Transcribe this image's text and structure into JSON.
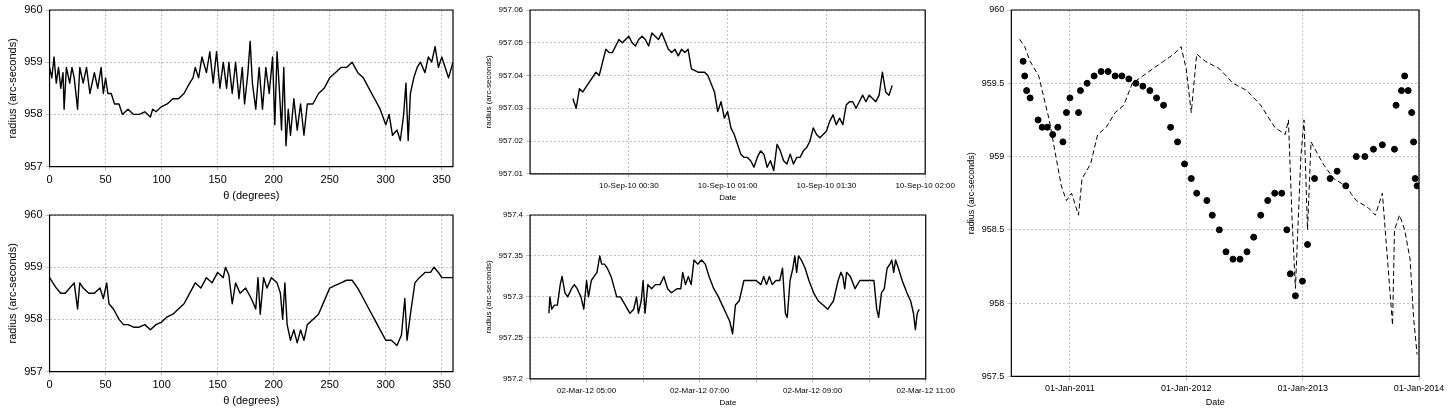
{
  "chart_data": [
    {
      "type": "line",
      "xlabel": "θ (degrees)",
      "ylabel": "radius (arc-seconds)",
      "xlim": [
        0,
        360
      ],
      "xticks": [
        0,
        50,
        100,
        150,
        200,
        250,
        300,
        350
      ],
      "ylim": [
        957,
        960
      ],
      "yticks": [
        957,
        958,
        959,
        960
      ],
      "grid": true,
      "line_style": "solid",
      "x": [
        0,
        2,
        4,
        6,
        8,
        10,
        12,
        13,
        15,
        18,
        20,
        22,
        25,
        27,
        30,
        33,
        36,
        40,
        43,
        46,
        48,
        50,
        52,
        55,
        58,
        62,
        65,
        70,
        75,
        80,
        85,
        90,
        92,
        95,
        100,
        105,
        110,
        115,
        120,
        125,
        128,
        130,
        133,
        136,
        140,
        143,
        146,
        149,
        152,
        155,
        158,
        160,
        163,
        166,
        169,
        172,
        174,
        177,
        179,
        181,
        184,
        187,
        190,
        193,
        196,
        199,
        201,
        203,
        205,
        207,
        209,
        211,
        213,
        215,
        218,
        221,
        224,
        227,
        230,
        235,
        240,
        245,
        250,
        255,
        260,
        265,
        270,
        275,
        280,
        285,
        290,
        295,
        300,
        303,
        306,
        310,
        313,
        316,
        318,
        320,
        322,
        325,
        328,
        331,
        335,
        338,
        341,
        344,
        347,
        350,
        353,
        356,
        360
      ],
      "series": [
        {
          "color": "#000000",
          "values": [
            958.9,
            958.7,
            959.1,
            958.6,
            958.9,
            958.5,
            958.8,
            958.1,
            958.9,
            958.6,
            958.9,
            958.7,
            958.1,
            958.9,
            958.6,
            958.9,
            958.4,
            958.8,
            958.5,
            958.9,
            958.4,
            958.7,
            958.4,
            958.4,
            958.2,
            958.2,
            958.0,
            958.1,
            958.0,
            958.0,
            958.05,
            957.95,
            958.1,
            958.05,
            958.15,
            958.2,
            958.3,
            958.3,
            958.4,
            958.6,
            958.7,
            958.9,
            958.7,
            959.1,
            958.8,
            959.2,
            958.6,
            959.2,
            958.5,
            959.0,
            958.5,
            959.0,
            958.4,
            959.0,
            958.3,
            958.9,
            958.2,
            958.8,
            959.4,
            958.6,
            958.1,
            958.9,
            958.1,
            958.9,
            958.4,
            959.1,
            957.8,
            959.2,
            958.5,
            957.7,
            958.9,
            957.4,
            958.1,
            957.6,
            958.3,
            957.7,
            958.2,
            957.6,
            958.2,
            958.2,
            958.4,
            958.5,
            958.7,
            958.8,
            958.9,
            958.9,
            959.0,
            958.8,
            958.7,
            958.5,
            958.3,
            958.1,
            957.8,
            958.0,
            957.6,
            957.7,
            957.5,
            958.0,
            958.6,
            957.5,
            958.4,
            958.7,
            958.9,
            959.0,
            958.8,
            959.1,
            959.0,
            959.3,
            958.9,
            959.1,
            958.9,
            958.7,
            959.0
          ]
        }
      ]
    },
    {
      "type": "line",
      "xlabel": "θ (degrees)",
      "ylabel": "radius (arc-seconds)",
      "xlim": [
        0,
        360
      ],
      "xticks": [
        0,
        50,
        100,
        150,
        200,
        250,
        300,
        350
      ],
      "ylim": [
        957,
        960
      ],
      "yticks": [
        957,
        958,
        959,
        960
      ],
      "grid": true,
      "line_style": "solid",
      "x": [
        0,
        3,
        6,
        10,
        14,
        18,
        22,
        25,
        27,
        30,
        35,
        40,
        45,
        48,
        51,
        53,
        57,
        62,
        66,
        70,
        75,
        80,
        85,
        90,
        95,
        100,
        105,
        110,
        115,
        120,
        125,
        130,
        135,
        140,
        145,
        150,
        155,
        157,
        160,
        163,
        166,
        170,
        175,
        180,
        184,
        186,
        188,
        191,
        194,
        198,
        203,
        206,
        208,
        210,
        212,
        215,
        218,
        221,
        224,
        227,
        230,
        235,
        240,
        245,
        250,
        255,
        260,
        265,
        270,
        275,
        280,
        285,
        290,
        295,
        300,
        305,
        310,
        314,
        317,
        319,
        322,
        326,
        330,
        335,
        340,
        343,
        347,
        350,
        355,
        360
      ],
      "series": [
        {
          "color": "#000000",
          "values": [
            958.8,
            958.7,
            958.6,
            958.5,
            958.5,
            958.6,
            958.7,
            958.2,
            958.7,
            958.6,
            958.5,
            958.5,
            958.6,
            958.4,
            958.7,
            958.3,
            958.2,
            958.0,
            957.9,
            957.9,
            957.85,
            957.85,
            957.9,
            957.8,
            957.9,
            957.95,
            958.05,
            958.1,
            958.2,
            958.3,
            958.5,
            958.7,
            958.6,
            958.8,
            958.7,
            958.9,
            958.8,
            959.0,
            958.85,
            958.3,
            958.7,
            958.5,
            958.6,
            958.4,
            958.2,
            958.8,
            958.1,
            958.8,
            958.6,
            958.8,
            958.7,
            958.5,
            958.0,
            958.7,
            957.9,
            957.6,
            957.8,
            957.55,
            957.8,
            957.6,
            957.9,
            958.0,
            958.1,
            958.35,
            958.6,
            958.65,
            958.7,
            958.75,
            958.75,
            958.6,
            958.4,
            958.2,
            958.0,
            957.8,
            957.6,
            957.6,
            957.5,
            957.7,
            958.4,
            957.6,
            958.1,
            958.7,
            958.8,
            958.9,
            958.9,
            959.0,
            958.9,
            958.8,
            958.8,
            958.8
          ]
        }
      ]
    },
    {
      "type": "line",
      "xlabel": "Date",
      "ylabel": "radius (arc-seconds)",
      "xlim": [
        "--09-10T00:00",
        "--09-10T02:00"
      ],
      "xticks": [
        {
          "value": "--09-10T00:30",
          "label": "10-Sep-10 00:30"
        },
        {
          "value": "--09-10T01:00",
          "label": "10-Sep-10 01:00"
        },
        {
          "value": "--09-10T01:30",
          "label": "10-Sep-10 01:30"
        },
        {
          "value": "--09-10T02:00",
          "label": "10-Sep-10 02:00"
        }
      ],
      "ylim": [
        957.01,
        957.06
      ],
      "yticks": [
        957.01,
        957.02,
        957.03,
        957.04,
        957.05,
        957.06
      ],
      "grid": true,
      "line_style": "solid",
      "x": [
        "--09-10T00:13",
        "--09-10T00:14",
        "--09-10T00:15",
        "--09-10T00:16",
        "--09-10T00:18",
        "--09-10T00:20",
        "--09-10T00:21",
        "--09-10T00:23",
        "--09-10T00:24",
        "--09-10T00:25",
        "--09-10T00:27",
        "--09-10T00:28",
        "--09-10T00:30",
        "--09-10T00:31",
        "--09-10T00:32",
        "--09-10T00:33",
        "--09-10T00:34",
        "--09-10T00:35",
        "--09-10T00:36",
        "--09-10T00:37",
        "--09-10T00:38",
        "--09-10T00:39",
        "--09-10T00:40",
        "--09-10T00:42",
        "--09-10T00:43",
        "--09-10T00:44",
        "--09-10T00:45",
        "--09-10T00:46",
        "--09-10T00:47",
        "--09-10T00:48",
        "--09-10T00:49",
        "--09-10T00:51",
        "--09-10T00:53",
        "--09-10T00:54",
        "--09-10T00:56",
        "--09-10T00:57",
        "--09-10T00:58",
        "--09-10T00:59",
        "--09-10T01:00",
        "--09-10T01:01",
        "--09-10T01:02",
        "--09-10T01:03",
        "--09-10T01:04",
        "--09-10T01:05",
        "--09-10T01:06",
        "--09-10T01:07",
        "--09-10T01:08",
        "--09-10T01:09",
        "--09-10T01:10",
        "--09-10T01:11",
        "--09-10T01:12",
        "--09-10T01:13",
        "--09-10T01:14",
        "--09-10T01:15",
        "--09-10T01:16",
        "--09-10T01:17",
        "--09-10T01:18",
        "--09-10T01:19",
        "--09-10T01:20",
        "--09-10T01:21",
        "--09-10T01:22",
        "--09-10T01:23",
        "--09-10T01:24",
        "--09-10T01:25",
        "--09-10T01:26",
        "--09-10T01:27",
        "--09-10T01:28",
        "--09-10T01:29",
        "--09-10T01:30",
        "--09-10T01:31",
        "--09-10T01:32",
        "--09-10T01:33",
        "--09-10T01:34",
        "--09-10T01:35",
        "--09-10T01:36",
        "--09-10T01:37",
        "--09-10T01:38",
        "--09-10T01:39",
        "--09-10T01:40",
        "--09-10T01:41",
        "--09-10T01:42",
        "--09-10T01:43",
        "--09-10T01:44",
        "--09-10T01:45",
        "--09-10T01:46",
        "--09-10T01:47",
        "--09-10T01:48",
        "--09-10T01:49",
        "--09-10T01:50"
      ],
      "series": [
        {
          "color": "#000000",
          "values": [
            957.033,
            957.03,
            957.036,
            957.035,
            957.038,
            957.041,
            957.04,
            957.048,
            957.047,
            957.047,
            957.051,
            957.05,
            957.052,
            957.05,
            957.049,
            957.051,
            957.052,
            957.051,
            957.049,
            957.053,
            957.052,
            957.051,
            957.053,
            957.048,
            957.047,
            957.048,
            957.046,
            957.048,
            957.047,
            957.048,
            957.042,
            957.041,
            957.041,
            957.04,
            957.035,
            957.029,
            957.032,
            957.027,
            957.029,
            957.024,
            957.022,
            957.019,
            957.016,
            957.015,
            957.015,
            957.014,
            957.012,
            957.015,
            957.017,
            957.016,
            957.012,
            957.014,
            957.011,
            957.019,
            957.017,
            957.014,
            957.013,
            957.016,
            957.013,
            957.015,
            957.015,
            957.017,
            957.018,
            957.02,
            957.024,
            957.022,
            957.021,
            957.022,
            957.023,
            957.026,
            957.028,
            957.025,
            957.027,
            957.025,
            957.031,
            957.032,
            957.032,
            957.03,
            957.032,
            957.034,
            957.032,
            957.034,
            957.033,
            957.032,
            957.034,
            957.041,
            957.035,
            957.034,
            957.037
          ]
        }
      ]
    },
    {
      "type": "line",
      "xlabel": "Date",
      "ylabel": "radius (arc-seconds)",
      "xlim": [
        "2012-03-02T04:00",
        "2012-03-02T11:00"
      ],
      "xticks": [
        {
          "value": "2012-03-02T04:00",
          "label": null
        },
        {
          "value": "2012-03-02T05:00",
          "label": "02-Mar-12 05:00"
        },
        {
          "value": "2012-03-02T06:00",
          "label": null
        },
        {
          "value": "2012-03-02T07:00",
          "label": "02-Mar-12 07:00"
        },
        {
          "value": "2012-03-02T08:00",
          "label": null
        },
        {
          "value": "2012-03-02T09:00",
          "label": "02-Mar-12 09:00"
        },
        {
          "value": "2012-03-02T10:00",
          "label": null
        },
        {
          "value": "2012-03-02T11:00",
          "label": "02-Mar-12 11:00"
        }
      ],
      "ylim": [
        957.2,
        957.4
      ],
      "yticks": [
        957.2,
        957.25,
        957.3,
        957.35,
        957.4
      ],
      "grid": true,
      "line_style": "solid",
      "x": [
        "2012-03-02T04:20",
        "2012-03-02T04:21",
        "2012-03-02T04:23",
        "2012-03-02T04:26",
        "2012-03-02T04:29",
        "2012-03-02T04:32",
        "2012-03-02T04:34",
        "2012-03-02T04:37",
        "2012-03-02T04:40",
        "2012-03-02T04:44",
        "2012-03-02T04:47",
        "2012-03-02T04:50",
        "2012-03-02T04:54",
        "2012-03-02T04:57",
        "2012-03-02T05:00",
        "2012-03-02T05:02",
        "2012-03-02T05:05",
        "2012-03-02T05:08",
        "2012-03-02T05:11",
        "2012-03-02T05:14",
        "2012-03-02T05:16",
        "2012-03-02T05:19",
        "2012-03-02T05:22",
        "2012-03-02T05:26",
        "2012-03-02T05:32",
        "2012-03-02T05:36",
        "2012-03-02T05:41",
        "2012-03-02T05:46",
        "2012-03-02T05:50",
        "2012-03-02T05:53",
        "2012-03-02T05:55",
        "2012-03-02T05:58",
        "2012-03-02T06:00",
        "2012-03-02T06:02",
        "2012-03-02T06:05",
        "2012-03-02T06:09",
        "2012-03-02T06:13",
        "2012-03-02T06:18",
        "2012-03-02T06:22",
        "2012-03-02T06:26",
        "2012-03-02T06:30",
        "2012-03-02T06:36",
        "2012-03-02T06:40",
        "2012-03-02T06:42",
        "2012-03-02T06:45",
        "2012-03-02T06:48",
        "2012-03-02T06:51",
        "2012-03-02T06:54",
        "2012-03-02T06:58",
        "2012-03-02T07:02",
        "2012-03-02T07:06",
        "2012-03-02T07:10",
        "2012-03-02T07:15",
        "2012-03-02T07:20",
        "2012-03-02T07:24",
        "2012-03-02T07:28",
        "2012-03-02T07:32",
        "2012-03-02T07:35",
        "2012-03-02T07:38",
        "2012-03-02T07:42",
        "2012-03-02T07:47",
        "2012-03-02T07:55",
        "2012-03-02T08:00",
        "2012-03-02T08:05",
        "2012-03-02T08:08",
        "2012-03-02T08:11",
        "2012-03-02T08:14",
        "2012-03-02T08:17",
        "2012-03-02T08:21",
        "2012-03-02T08:25",
        "2012-03-02T08:28",
        "2012-03-02T08:31",
        "2012-03-02T08:33",
        "2012-03-02T08:36",
        "2012-03-02T08:39",
        "2012-03-02T08:41",
        "2012-03-02T08:43",
        "2012-03-02T08:45",
        "2012-03-02T08:48",
        "2012-03-02T08:52",
        "2012-03-02T08:56",
        "2012-03-02T09:01",
        "2012-03-02T09:06",
        "2012-03-02T09:11",
        "2012-03-02T09:16",
        "2012-03-02T09:22",
        "2012-03-02T09:27",
        "2012-03-02T09:30",
        "2012-03-02T09:32",
        "2012-03-02T09:34",
        "2012-03-02T09:36",
        "2012-03-02T09:40",
        "2012-03-02T09:45",
        "2012-03-02T09:50",
        "2012-03-02T09:55",
        "2012-03-02T10:00",
        "2012-03-02T10:05",
        "2012-03-02T10:08",
        "2012-03-02T10:10",
        "2012-03-02T10:13",
        "2012-03-02T10:16",
        "2012-03-02T10:19",
        "2012-03-02T10:22",
        "2012-03-02T10:24",
        "2012-03-02T10:26",
        "2012-03-02T10:28",
        "2012-03-02T10:31",
        "2012-03-02T10:35",
        "2012-03-02T10:40",
        "2012-03-02T10:44",
        "2012-03-02T10:47",
        "2012-03-02T10:49",
        "2012-03-02T10:51",
        "2012-03-02T10:53"
      ],
      "series": [
        {
          "color": "#000000",
          "values": [
            957.28,
            957.3,
            957.285,
            957.29,
            957.29,
            957.315,
            957.325,
            957.305,
            957.3,
            957.31,
            957.315,
            957.31,
            957.3,
            957.285,
            957.32,
            957.3,
            957.32,
            957.325,
            957.33,
            957.35,
            957.34,
            957.34,
            957.335,
            957.325,
            957.3,
            957.3,
            957.29,
            957.28,
            957.285,
            957.3,
            957.28,
            957.295,
            957.32,
            957.28,
            957.315,
            957.31,
            957.315,
            957.315,
            957.325,
            957.31,
            957.305,
            957.31,
            957.31,
            957.33,
            957.315,
            957.325,
            957.315,
            957.345,
            957.34,
            957.345,
            957.34,
            957.325,
            957.31,
            957.3,
            957.29,
            957.28,
            957.27,
            957.255,
            957.29,
            957.295,
            957.32,
            957.32,
            957.32,
            957.315,
            957.325,
            957.315,
            957.325,
            957.315,
            957.32,
            957.32,
            957.335,
            957.28,
            957.275,
            957.32,
            957.335,
            957.35,
            957.33,
            957.35,
            957.345,
            957.335,
            957.32,
            957.305,
            957.295,
            957.29,
            957.285,
            957.295,
            957.32,
            957.33,
            957.325,
            957.31,
            957.33,
            957.325,
            957.31,
            957.32,
            957.32,
            957.32,
            957.32,
            957.285,
            957.275,
            957.305,
            957.31,
            957.335,
            957.34,
            957.345,
            957.33,
            957.345,
            957.335,
            957.32,
            957.305,
            957.295,
            957.28,
            957.26,
            957.28,
            957.285
          ]
        }
      ]
    },
    {
      "type": "scatter",
      "xlabel": "Date",
      "ylabel": "radius (arc-seconds)",
      "xlim": [
        "2010-07-01",
        "2014-01-01"
      ],
      "xticks": [
        {
          "value": "2011-01-01",
          "label": "01-Jan-2011"
        },
        {
          "value": "2012-01-01",
          "label": "01-Jan-2012"
        },
        {
          "value": "2013-01-01",
          "label": "01-Jan-2013"
        },
        {
          "value": "2014-01-01",
          "label": "01-Jan-2014"
        }
      ],
      "ylim": [
        957.5,
        960
      ],
      "yticks": [
        957.5,
        958,
        958.5,
        959,
        959.5,
        960
      ],
      "grid": true,
      "series": [
        {
          "type": "scatter",
          "marker": "circle",
          "color": "#000000",
          "x": [
            "2010-08-07",
            "2010-08-12",
            "2010-08-18",
            "2010-08-29",
            "2010-09-23",
            "2010-10-06",
            "2010-10-22",
            "2010-11-08",
            "2010-11-24",
            "2010-12-10",
            "2010-12-21",
            "2011-01-01",
            "2011-01-28",
            "2011-02-03",
            "2011-02-24",
            "2011-03-18",
            "2011-04-09",
            "2011-05-01",
            "2011-05-23",
            "2011-06-13",
            "2011-07-05",
            "2011-07-27",
            "2011-08-18",
            "2011-09-09",
            "2011-09-30",
            "2011-10-22",
            "2011-11-13",
            "2011-12-05",
            "2011-12-27",
            "2012-01-17",
            "2012-02-03",
            "2012-03-06",
            "2012-03-23",
            "2012-04-14",
            "2012-05-05",
            "2012-05-27",
            "2012-06-18",
            "2012-07-10",
            "2012-07-31",
            "2012-08-22",
            "2012-09-13",
            "2012-10-05",
            "2012-10-27",
            "2012-11-12",
            "2012-11-23",
            "2012-12-09",
            "2012-12-31",
            "2013-01-16",
            "2013-02-07",
            "2013-03-28",
            "2013-04-19",
            "2013-05-16",
            "2013-06-18",
            "2013-07-15",
            "2013-08-11",
            "2013-09-08",
            "2013-10-16",
            "2013-10-21",
            "2013-11-07",
            "2013-11-17",
            "2013-11-28",
            "2013-12-09",
            "2013-12-15",
            "2013-12-20",
            "2013-12-26"
          ],
          "values": [
            959.65,
            959.55,
            959.45,
            959.4,
            959.25,
            959.2,
            959.2,
            959.15,
            959.2,
            959.1,
            959.3,
            959.4,
            959.3,
            959.45,
            959.5,
            959.55,
            959.58,
            959.58,
            959.55,
            959.55,
            959.53,
            959.5,
            959.48,
            959.45,
            959.4,
            959.35,
            959.2,
            959.1,
            958.95,
            958.85,
            958.75,
            958.7,
            958.6,
            958.5,
            958.35,
            958.3,
            958.3,
            958.35,
            958.45,
            958.6,
            958.7,
            958.75,
            958.75,
            958.5,
            958.2,
            958.05,
            958.15,
            958.4,
            958.85,
            958.85,
            958.9,
            958.8,
            959.0,
            959.0,
            959.05,
            959.08,
            959.05,
            959.35,
            959.45,
            959.55,
            959.45,
            959.3,
            959.1,
            958.85,
            958.8
          ]
        },
        {
          "type": "line",
          "marker": "none",
          "line_style": "dashed",
          "color": "#000000",
          "x": [
            "2010-07-27",
            "2010-08-12",
            "2010-08-29",
            "2010-09-25",
            "2010-10-06",
            "2010-10-28",
            "2010-11-18",
            "2010-12-05",
            "2010-12-21",
            "2011-01-06",
            "2011-01-28",
            "2011-02-08",
            "2011-03-07",
            "2011-03-29",
            "2011-04-25",
            "2011-05-23",
            "2011-06-19",
            "2011-07-16",
            "2011-08-18",
            "2011-09-19",
            "2011-10-22",
            "2011-11-24",
            "2011-12-16",
            "2012-01-01",
            "2012-01-17",
            "2012-02-03",
            "2012-03-01",
            "2012-04-14",
            "2012-05-27",
            "2012-07-10",
            "2012-08-22",
            "2012-10-05",
            "2012-11-07",
            "2012-11-17",
            "2012-11-28",
            "2012-12-09",
            "2012-12-26",
            "2013-01-05",
            "2013-01-16",
            "2013-01-27",
            "2013-03-06",
            "2013-04-08",
            "2013-05-16",
            "2013-06-01",
            "2013-06-18",
            "2013-07-26",
            "2013-08-17",
            "2013-09-08",
            "2013-10-10",
            "2013-10-16",
            "2013-11-01",
            "2013-11-17",
            "2013-12-04",
            "2013-12-15",
            "2013-12-26"
          ],
          "values": [
            959.8,
            959.75,
            959.65,
            959.55,
            959.45,
            959.25,
            959.0,
            958.8,
            958.7,
            958.75,
            958.6,
            958.85,
            958.95,
            959.15,
            959.2,
            959.3,
            959.35,
            959.5,
            959.55,
            959.6,
            959.65,
            959.7,
            959.75,
            959.6,
            959.3,
            959.7,
            959.65,
            959.6,
            959.5,
            959.45,
            959.35,
            959.2,
            959.15,
            959.25,
            958.6,
            958.1,
            959.0,
            959.25,
            958.5,
            959.1,
            958.95,
            958.85,
            958.8,
            958.75,
            958.7,
            958.65,
            958.6,
            958.75,
            957.85,
            958.5,
            958.6,
            958.5,
            958.3,
            957.9,
            957.65
          ]
        }
      ]
    }
  ]
}
